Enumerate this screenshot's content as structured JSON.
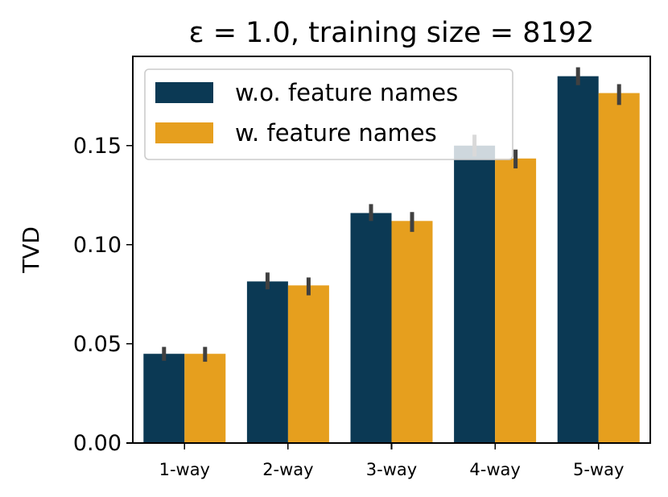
{
  "chart_data": {
    "type": "bar",
    "title": "ε = 1.0, training size = 8192",
    "xlabel": "",
    "ylabel": "TVD",
    "ylim": [
      0,
      0.195
    ],
    "yticks": [
      0.0,
      0.05,
      0.1,
      0.15
    ],
    "ytick_labels": [
      "0.00",
      "0.05",
      "0.10",
      "0.15"
    ],
    "categories": [
      "1-way",
      "2-way",
      "3-way",
      "4-way",
      "5-way"
    ],
    "series": [
      {
        "name": "w.o. feature names",
        "color": "#0b3954",
        "values": [
          0.045,
          0.0815,
          0.116,
          0.15,
          0.185
        ],
        "error_low": [
          0.0415,
          0.0775,
          0.112,
          0.1445,
          0.1805
        ],
        "error_high": [
          0.0485,
          0.086,
          0.1205,
          0.1555,
          0.1895
        ]
      },
      {
        "name": "w. feature names",
        "color": "#e69f1e",
        "values": [
          0.045,
          0.0795,
          0.112,
          0.1435,
          0.1765
        ],
        "error_low": [
          0.041,
          0.0745,
          0.1065,
          0.1385,
          0.1705
        ],
        "error_high": [
          0.0485,
          0.0835,
          0.1165,
          0.148,
          0.181
        ]
      }
    ],
    "legend": {
      "position": "top-left",
      "entries": [
        "w.o. feature names",
        "w. feature names"
      ]
    },
    "grid": false
  }
}
